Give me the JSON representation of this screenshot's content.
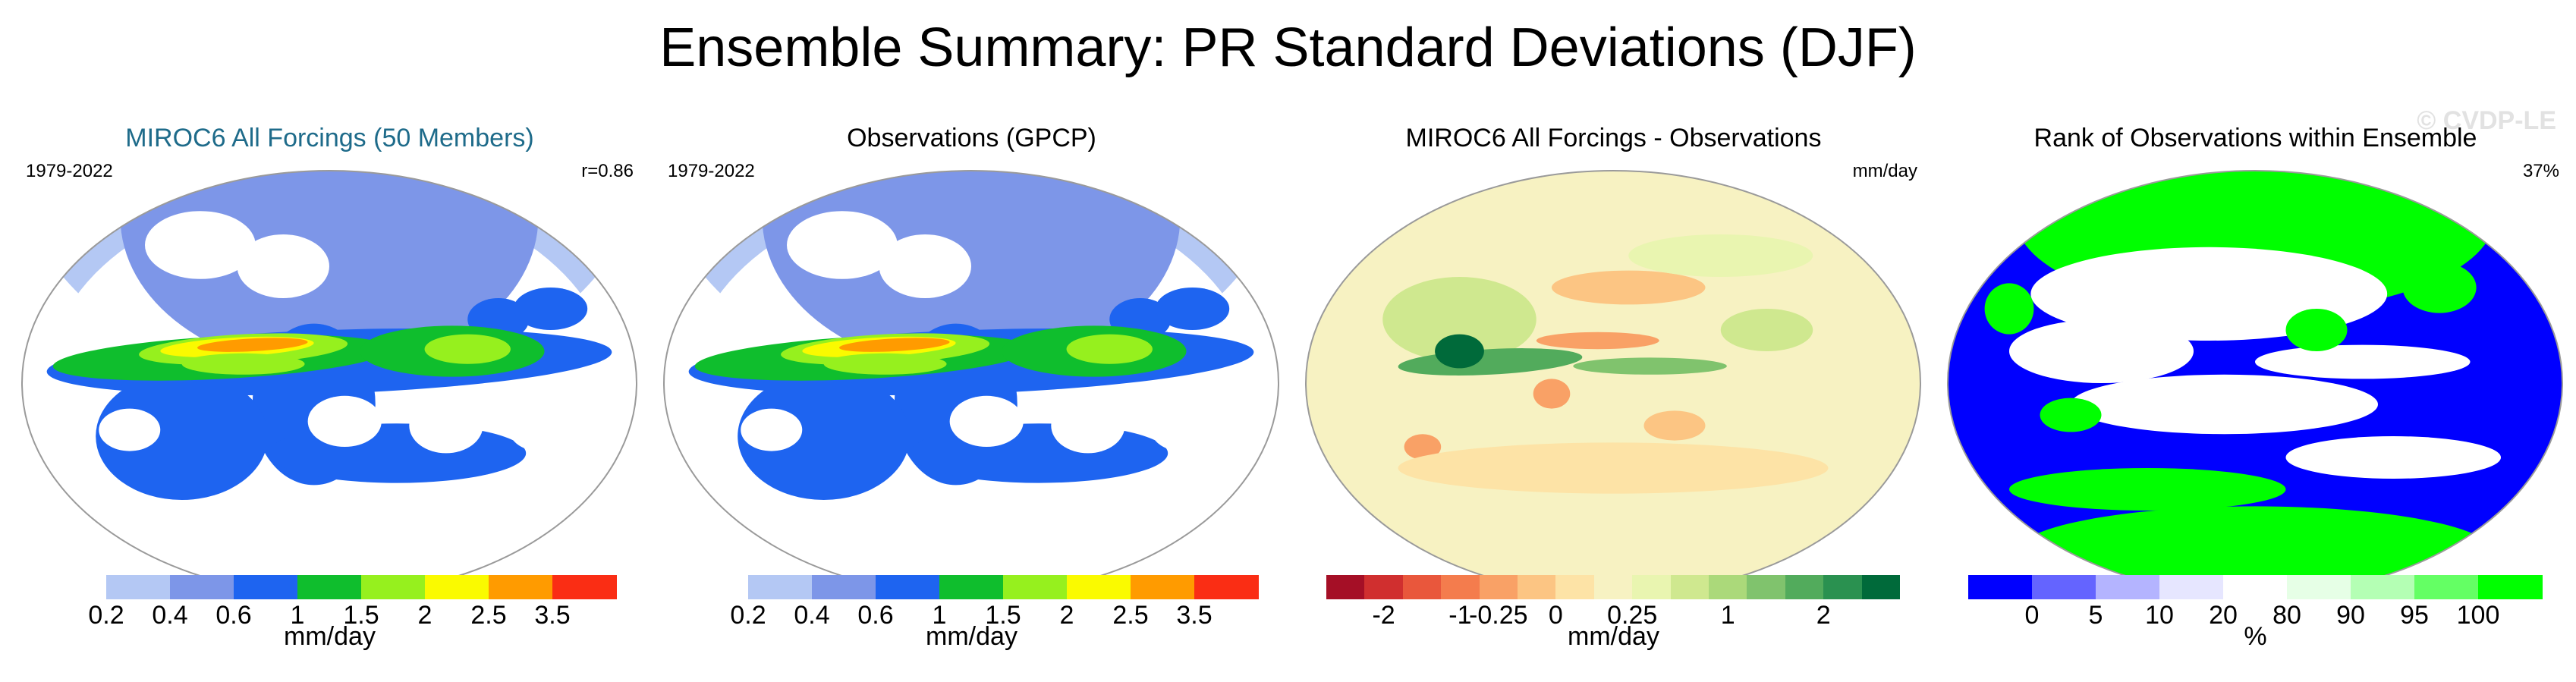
{
  "title": "Ensemble Summary: PR Standard Deviations (DJF)",
  "watermark": "© CVDP-LE",
  "panels": [
    {
      "title": "MIROC6 All Forcings (50 Members)",
      "left_label": "1979-2022",
      "right_label": "r=0.86",
      "map_style": "pr",
      "colorbar": {
        "colors": [
          "#ffffff",
          "#b4c8f4",
          "#7d96e8",
          "#1e64f0",
          "#0fbe2d",
          "#96f01e",
          "#fafa00",
          "#ff9b00",
          "#fa2d14"
        ],
        "labels": [
          "0.2",
          "0.4",
          "0.6",
          "1",
          "1.5",
          "2",
          "2.5",
          "3.5"
        ],
        "units": "mm/day"
      }
    },
    {
      "title": "Observations (GPCP)",
      "left_label": "1979-2022",
      "right_label": "",
      "map_style": "pr",
      "colorbar": {
        "colors": [
          "#ffffff",
          "#b4c8f4",
          "#7d96e8",
          "#1e64f0",
          "#0fbe2d",
          "#96f01e",
          "#fafa00",
          "#ff9b00",
          "#fa2d14"
        ],
        "labels": [
          "0.2",
          "0.4",
          "0.6",
          "1",
          "1.5",
          "2",
          "2.5",
          "3.5"
        ],
        "units": "mm/day"
      }
    },
    {
      "title": "MIROC6 All Forcings - Observations",
      "left_label": "",
      "right_label": "mm/day",
      "map_style": "diff",
      "colorbar": {
        "colors": [
          "#a50f26",
          "#d02f2f",
          "#e9573c",
          "#f47c4d",
          "#f9a166",
          "#fcc583",
          "#fde3a6",
          "#f7f2c2",
          "#e9f5b0",
          "#cfe88f",
          "#abd97a",
          "#80c36d",
          "#52ab5c",
          "#2a9150",
          "#006a3a"
        ],
        "labels": [
          "-2",
          "-1",
          "-0.25",
          "0",
          "0.25",
          "1",
          "2"
        ],
        "label_positions": [
          1.5,
          3.5,
          4.5,
          6,
          8,
          10.5,
          13
        ],
        "units": "mm/day"
      }
    },
    {
      "title": "Rank of Observations within Ensemble",
      "left_label": "",
      "right_label": "37%",
      "map_style": "rank",
      "colorbar": {
        "colors": [
          "#0000ff",
          "#6464ff",
          "#b4b4ff",
          "#e6e6ff",
          "#ffffff",
          "#e6ffe6",
          "#b4ffb4",
          "#64ff64",
          "#00ff00"
        ],
        "labels": [
          "0",
          "5",
          "10",
          "20",
          "80",
          "90",
          "95",
          "100"
        ],
        "units": "%"
      }
    }
  ],
  "chart_data": [
    {
      "type": "heatmap",
      "title": "MIROC6 All Forcings (50 Members)",
      "period": "1979-2022",
      "pattern_correlation": 0.86,
      "levels": [
        0.2,
        0.4,
        0.6,
        1,
        1.5,
        2,
        2.5,
        3.5
      ],
      "units": "mm/day"
    },
    {
      "type": "heatmap",
      "title": "Observations (GPCP)",
      "period": "1979-2022",
      "levels": [
        0.2,
        0.4,
        0.6,
        1,
        1.5,
        2,
        2.5,
        3.5
      ],
      "units": "mm/day"
    },
    {
      "type": "heatmap",
      "title": "MIROC6 All Forcings - Observations",
      "levels": [
        -2,
        -1,
        -0.25,
        0,
        0.25,
        1,
        2
      ],
      "units": "mm/day"
    },
    {
      "type": "heatmap",
      "title": "Rank of Observations within Ensemble",
      "summary_percent": 37,
      "levels": [
        0,
        5,
        10,
        20,
        80,
        90,
        95,
        100
      ],
      "units": "%"
    }
  ]
}
